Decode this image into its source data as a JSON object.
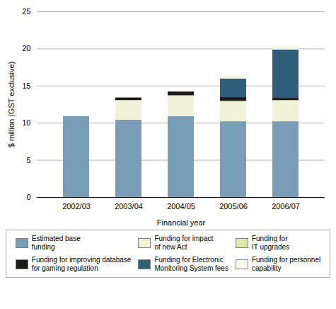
{
  "chart_data": {
    "type": "bar",
    "stacked": true,
    "categories": [
      "2002/03",
      "2003/04",
      "2004/05",
      "2005/06",
      "2006/07"
    ],
    "series": [
      {
        "name": "Estimated base\nfunding",
        "color": "#7a9db8",
        "values": [
          10.9,
          10.4,
          10.9,
          10.2,
          10.2
        ]
      },
      {
        "name": "Funding for impact\nof new Act",
        "color": "#f2f2d8",
        "values": [
          0.0,
          2.65,
          2.8,
          2.6,
          2.7
        ]
      },
      {
        "name": "Funding for\nIT upgrades",
        "color": "#dde8b0",
        "values": [
          0.0,
          0.0,
          0.0,
          0.15,
          0.15
        ]
      },
      {
        "name": "Funding for improving database\nfor gaming regulation",
        "color": "#1a1a1a",
        "values": [
          0.0,
          0.35,
          0.5,
          0.5,
          0.3
        ]
      },
      {
        "name": "Funding for Electronic\nMonitoring System fees",
        "color": "#2e5f7a",
        "values": [
          0.0,
          0.0,
          0.0,
          2.5,
          6.5
        ]
      },
      {
        "name": "Funding for personnel\ncapability",
        "color": "#f8f8e8",
        "values": [
          0.0,
          0.0,
          0.0,
          0.45,
          0.55
        ]
      }
    ],
    "xlabel": "Financial year",
    "ylabel": "$ million (GST exclusive)",
    "ylim": [
      0,
      25
    ],
    "yticks": [
      0,
      5,
      10,
      15,
      20,
      25
    ],
    "grid": true,
    "legend": "bottom"
  }
}
